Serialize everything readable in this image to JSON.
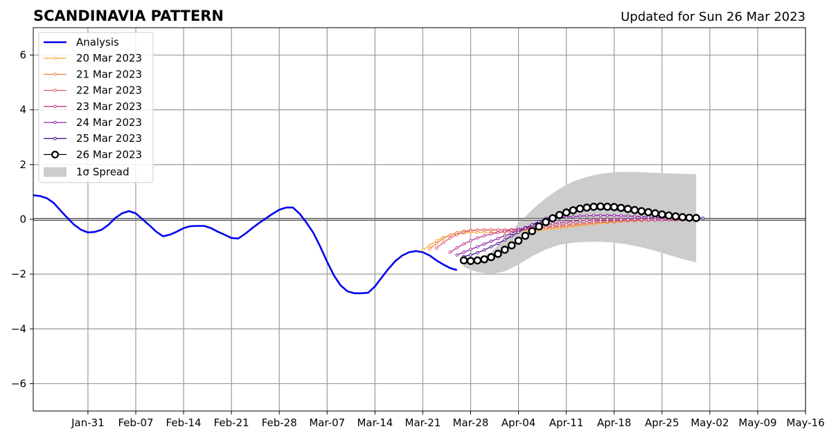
{
  "chart_data": {
    "type": "line",
    "title": "SCANDINAVIA PATTERN",
    "subtitle": "Updated for Sun 26 Mar 2023",
    "xlabel": "",
    "ylabel": "",
    "x_range": [
      "2023-01-23",
      "2023-05-16"
    ],
    "ylim": [
      -7,
      7
    ],
    "yticks": [
      -6,
      -4,
      -2,
      0,
      2,
      4,
      6
    ],
    "ytick_labels": [
      "−6",
      "−4",
      "−2",
      "0",
      "2",
      "4",
      "6"
    ],
    "xticks": [
      "2023-01-31",
      "2023-02-07",
      "2023-02-14",
      "2023-02-21",
      "2023-02-28",
      "2023-03-07",
      "2023-03-14",
      "2023-03-21",
      "2023-03-28",
      "2023-04-04",
      "2023-04-11",
      "2023-04-18",
      "2023-04-25",
      "2023-05-02",
      "2023-05-09",
      "2023-05-16"
    ],
    "xtick_labels": [
      "Jan-31",
      "Feb-07",
      "Feb-14",
      "Feb-21",
      "Feb-28",
      "Mar-07",
      "Mar-14",
      "Mar-21",
      "Mar-28",
      "Apr-04",
      "Apr-11",
      "Apr-18",
      "Apr-25",
      "May-02",
      "May-09",
      "May-16"
    ],
    "grid": true,
    "legend_position": "upper-left",
    "analysis": {
      "name": "Analysis",
      "color": "#0000ee",
      "x": [
        "2023-01-23",
        "2023-01-24",
        "2023-01-25",
        "2023-01-26",
        "2023-01-27",
        "2023-01-28",
        "2023-01-29",
        "2023-01-30",
        "2023-01-31",
        "2023-02-01",
        "2023-02-02",
        "2023-02-03",
        "2023-02-04",
        "2023-02-05",
        "2023-02-06",
        "2023-02-07",
        "2023-02-08",
        "2023-02-09",
        "2023-02-10",
        "2023-02-11",
        "2023-02-12",
        "2023-02-13",
        "2023-02-14",
        "2023-02-15",
        "2023-02-16",
        "2023-02-17",
        "2023-02-18",
        "2023-02-19",
        "2023-02-20",
        "2023-02-21",
        "2023-02-22",
        "2023-02-23",
        "2023-02-24",
        "2023-02-25",
        "2023-02-26",
        "2023-02-27",
        "2023-02-28",
        "2023-03-01",
        "2023-03-02",
        "2023-03-03",
        "2023-03-04",
        "2023-03-05",
        "2023-03-06",
        "2023-03-07",
        "2023-03-08",
        "2023-03-09",
        "2023-03-10",
        "2023-03-11",
        "2023-03-12",
        "2023-03-13",
        "2023-03-14",
        "2023-03-15",
        "2023-03-16",
        "2023-03-17",
        "2023-03-18",
        "2023-03-19",
        "2023-03-20",
        "2023-03-21",
        "2023-03-22",
        "2023-03-23",
        "2023-03-24",
        "2023-03-25",
        "2023-03-26"
      ],
      "y": [
        0.88,
        0.85,
        0.77,
        0.6,
        0.32,
        0.05,
        -0.2,
        -0.38,
        -0.48,
        -0.46,
        -0.38,
        -0.2,
        0.05,
        0.22,
        0.3,
        0.22,
        0.0,
        -0.22,
        -0.45,
        -0.62,
        -0.56,
        -0.45,
        -0.32,
        -0.25,
        -0.24,
        -0.24,
        -0.32,
        -0.45,
        -0.56,
        -0.68,
        -0.7,
        -0.53,
        -0.33,
        -0.14,
        0.03,
        0.2,
        0.35,
        0.43,
        0.43,
        0.2,
        -0.13,
        -0.5,
        -1.0,
        -1.55,
        -2.05,
        -2.42,
        -2.63,
        -2.7,
        -2.7,
        -2.68,
        -2.45,
        -2.12,
        -1.8,
        -1.52,
        -1.32,
        -1.2,
        -1.16,
        -1.2,
        -1.32,
        -1.5,
        -1.65,
        -1.78,
        -1.85
      ]
    },
    "forecasts": [
      {
        "name": "20 Mar 2023",
        "color": "#f5b040",
        "x": [
          "2023-03-21",
          "2023-03-22",
          "2023-03-23",
          "2023-03-24",
          "2023-03-25",
          "2023-03-26",
          "2023-03-27",
          "2023-03-28",
          "2023-03-29",
          "2023-03-30",
          "2023-03-31",
          "2023-04-01",
          "2023-04-02",
          "2023-04-03",
          "2023-04-04",
          "2023-04-05",
          "2023-04-06",
          "2023-04-07",
          "2023-04-08",
          "2023-04-09",
          "2023-04-10",
          "2023-04-11",
          "2023-04-12",
          "2023-04-13",
          "2023-04-14",
          "2023-04-15",
          "2023-04-16",
          "2023-04-17",
          "2023-04-18",
          "2023-04-19",
          "2023-04-20",
          "2023-04-21",
          "2023-04-22",
          "2023-04-23",
          "2023-04-24",
          "2023-04-25",
          "2023-04-26"
        ],
        "y": [
          -1.12,
          -0.95,
          -0.78,
          -0.66,
          -0.58,
          -0.53,
          -0.5,
          -0.48,
          -0.47,
          -0.47,
          -0.47,
          -0.47,
          -0.47,
          -0.46,
          -0.45,
          -0.44,
          -0.42,
          -0.4,
          -0.37,
          -0.34,
          -0.31,
          -0.28,
          -0.25,
          -0.22,
          -0.19,
          -0.16,
          -0.14,
          -0.12,
          -0.1,
          -0.08,
          -0.06,
          -0.05,
          -0.04,
          -0.03,
          -0.02,
          -0.02,
          -0.02
        ]
      },
      {
        "name": "21 Mar 2023",
        "color": "#ed8246",
        "x": [
          "2023-03-22",
          "2023-03-23",
          "2023-03-24",
          "2023-03-25",
          "2023-03-26",
          "2023-03-27",
          "2023-03-28",
          "2023-03-29",
          "2023-03-30",
          "2023-03-31",
          "2023-04-01",
          "2023-04-02",
          "2023-04-03",
          "2023-04-04",
          "2023-04-05",
          "2023-04-06",
          "2023-04-07",
          "2023-04-08",
          "2023-04-09",
          "2023-04-10",
          "2023-04-11",
          "2023-04-12",
          "2023-04-13",
          "2023-04-14",
          "2023-04-15",
          "2023-04-16",
          "2023-04-17",
          "2023-04-18",
          "2023-04-19",
          "2023-04-20",
          "2023-04-21",
          "2023-04-22",
          "2023-04-23",
          "2023-04-24",
          "2023-04-25",
          "2023-04-26",
          "2023-04-27"
        ],
        "y": [
          -1.08,
          -0.88,
          -0.7,
          -0.57,
          -0.48,
          -0.43,
          -0.4,
          -0.39,
          -0.39,
          -0.39,
          -0.39,
          -0.39,
          -0.39,
          -0.38,
          -0.37,
          -0.36,
          -0.34,
          -0.32,
          -0.3,
          -0.27,
          -0.25,
          -0.22,
          -0.19,
          -0.17,
          -0.14,
          -0.12,
          -0.1,
          -0.09,
          -0.07,
          -0.06,
          -0.05,
          -0.04,
          -0.03,
          -0.03,
          -0.02,
          -0.02,
          -0.02
        ]
      },
      {
        "name": "22 Mar 2023",
        "color": "#df5c6e",
        "x": [
          "2023-03-23",
          "2023-03-24",
          "2023-03-25",
          "2023-03-26",
          "2023-03-27",
          "2023-03-28",
          "2023-03-29",
          "2023-03-30",
          "2023-03-31",
          "2023-04-01",
          "2023-04-02",
          "2023-04-03",
          "2023-04-04",
          "2023-04-05",
          "2023-04-06",
          "2023-04-07",
          "2023-04-08",
          "2023-04-09",
          "2023-04-10",
          "2023-04-11",
          "2023-04-12",
          "2023-04-13",
          "2023-04-14",
          "2023-04-15",
          "2023-04-16",
          "2023-04-17",
          "2023-04-18",
          "2023-04-19",
          "2023-04-20",
          "2023-04-21",
          "2023-04-22",
          "2023-04-23",
          "2023-04-24",
          "2023-04-25",
          "2023-04-26",
          "2023-04-27",
          "2023-04-28"
        ],
        "y": [
          -1.05,
          -0.85,
          -0.68,
          -0.56,
          -0.47,
          -0.42,
          -0.39,
          -0.38,
          -0.38,
          -0.38,
          -0.38,
          -0.37,
          -0.36,
          -0.34,
          -0.32,
          -0.3,
          -0.27,
          -0.25,
          -0.22,
          -0.19,
          -0.17,
          -0.14,
          -0.12,
          -0.1,
          -0.08,
          -0.07,
          -0.06,
          -0.05,
          -0.04,
          -0.03,
          -0.03,
          -0.02,
          -0.02,
          -0.02,
          -0.02,
          -0.02,
          -0.02
        ]
      },
      {
        "name": "23 Mar 2023",
        "color": "#c0358e",
        "x": [
          "2023-03-25",
          "2023-03-26",
          "2023-03-27",
          "2023-03-28",
          "2023-03-29",
          "2023-03-30",
          "2023-03-31",
          "2023-04-01",
          "2023-04-02",
          "2023-04-03",
          "2023-04-04",
          "2023-04-05",
          "2023-04-06",
          "2023-04-07",
          "2023-04-08",
          "2023-04-09",
          "2023-04-10",
          "2023-04-11",
          "2023-04-12",
          "2023-04-13",
          "2023-04-14",
          "2023-04-15",
          "2023-04-16",
          "2023-04-17",
          "2023-04-18",
          "2023-04-19",
          "2023-04-20",
          "2023-04-21",
          "2023-04-22",
          "2023-04-23",
          "2023-04-24",
          "2023-04-25",
          "2023-04-26",
          "2023-04-27",
          "2023-04-28",
          "2023-04-29"
        ],
        "y": [
          -1.2,
          -1.04,
          -0.9,
          -0.78,
          -0.68,
          -0.6,
          -0.53,
          -0.48,
          -0.44,
          -0.4,
          -0.36,
          -0.32,
          -0.28,
          -0.24,
          -0.2,
          -0.16,
          -0.13,
          -0.1,
          -0.07,
          -0.05,
          -0.03,
          -0.02,
          -0.01,
          0.0,
          0.0,
          0.0,
          0.0,
          0.0,
          -0.01,
          -0.01,
          -0.02,
          -0.02,
          -0.02,
          -0.02,
          -0.02,
          -0.02
        ]
      },
      {
        "name": "24 Mar 2023",
        "color": "#8e1ea5",
        "x": [
          "2023-03-26",
          "2023-03-27",
          "2023-03-28",
          "2023-03-29",
          "2023-03-30",
          "2023-03-31",
          "2023-04-01",
          "2023-04-02",
          "2023-04-03",
          "2023-04-04",
          "2023-04-05",
          "2023-04-06",
          "2023-04-07",
          "2023-04-08",
          "2023-04-09",
          "2023-04-10",
          "2023-04-11",
          "2023-04-12",
          "2023-04-13",
          "2023-04-14",
          "2023-04-15",
          "2023-04-16",
          "2023-04-17",
          "2023-04-18",
          "2023-04-19",
          "2023-04-20",
          "2023-04-21",
          "2023-04-22",
          "2023-04-23",
          "2023-04-24",
          "2023-04-25",
          "2023-04-26",
          "2023-04-27",
          "2023-04-28",
          "2023-04-29",
          "2023-04-30"
        ],
        "y": [
          -1.3,
          -1.2,
          -1.1,
          -1.0,
          -0.9,
          -0.8,
          -0.7,
          -0.6,
          -0.5,
          -0.4,
          -0.3,
          -0.21,
          -0.13,
          -0.06,
          0.0,
          0.05,
          0.08,
          0.1,
          0.12,
          0.13,
          0.14,
          0.14,
          0.14,
          0.14,
          0.13,
          0.12,
          0.11,
          0.1,
          0.08,
          0.07,
          0.06,
          0.05,
          0.04,
          0.03,
          0.02,
          0.02
        ]
      },
      {
        "name": "25 Mar 2023",
        "color": "#4a0f8a",
        "x": [
          "2023-03-27",
          "2023-03-28",
          "2023-03-29",
          "2023-03-30",
          "2023-03-31",
          "2023-04-01",
          "2023-04-02",
          "2023-04-03",
          "2023-04-04",
          "2023-04-05",
          "2023-04-06",
          "2023-04-07",
          "2023-04-08",
          "2023-04-09",
          "2023-04-10",
          "2023-04-11",
          "2023-04-12",
          "2023-04-13",
          "2023-04-14",
          "2023-04-15",
          "2023-04-16",
          "2023-04-17",
          "2023-04-18",
          "2023-04-19",
          "2023-04-20",
          "2023-04-21",
          "2023-04-22",
          "2023-04-23",
          "2023-04-24",
          "2023-04-25",
          "2023-04-26",
          "2023-04-27",
          "2023-04-28",
          "2023-04-29",
          "2023-04-30",
          "2023-05-01"
        ],
        "y": [
          -1.36,
          -1.3,
          -1.22,
          -1.12,
          -1.0,
          -0.88,
          -0.75,
          -0.61,
          -0.47,
          -0.33,
          -0.2,
          -0.08,
          0.03,
          0.13,
          0.21,
          0.27,
          0.32,
          0.35,
          0.37,
          0.38,
          0.38,
          0.37,
          0.35,
          0.33,
          0.3,
          0.27,
          0.24,
          0.21,
          0.18,
          0.15,
          0.12,
          0.1,
          0.08,
          0.06,
          0.05,
          0.04
        ]
      },
      {
        "name": "26 Mar 2023",
        "color": "#000000",
        "x": [
          "2023-03-27",
          "2023-03-28",
          "2023-03-29",
          "2023-03-30",
          "2023-03-31",
          "2023-04-01",
          "2023-04-02",
          "2023-04-03",
          "2023-04-04",
          "2023-04-05",
          "2023-04-06",
          "2023-04-07",
          "2023-04-08",
          "2023-04-09",
          "2023-04-10",
          "2023-04-11",
          "2023-04-12",
          "2023-04-13",
          "2023-04-14",
          "2023-04-15",
          "2023-04-16",
          "2023-04-17",
          "2023-04-18",
          "2023-04-19",
          "2023-04-20",
          "2023-04-21",
          "2023-04-22",
          "2023-04-23",
          "2023-04-24",
          "2023-04-25",
          "2023-04-26",
          "2023-04-27",
          "2023-04-28",
          "2023-04-29",
          "2023-04-30"
        ],
        "y": [
          -1.5,
          -1.52,
          -1.5,
          -1.46,
          -1.38,
          -1.26,
          -1.11,
          -0.95,
          -0.78,
          -0.6,
          -0.43,
          -0.26,
          -0.1,
          0.04,
          0.16,
          0.25,
          0.33,
          0.39,
          0.43,
          0.46,
          0.47,
          0.46,
          0.45,
          0.42,
          0.38,
          0.34,
          0.3,
          0.26,
          0.22,
          0.18,
          0.14,
          0.11,
          0.08,
          0.06,
          0.05
        ]
      }
    ],
    "spread": {
      "name": "1σ Spread",
      "color": "#cccccc",
      "x": [
        "2023-03-27",
        "2023-03-29",
        "2023-03-31",
        "2023-04-02",
        "2023-04-04",
        "2023-04-06",
        "2023-04-08",
        "2023-04-10",
        "2023-04-12",
        "2023-04-14",
        "2023-04-16",
        "2023-04-18",
        "2023-04-20",
        "2023-04-22",
        "2023-04-24",
        "2023-04-26",
        "2023-04-28",
        "2023-04-30"
      ],
      "upper": [
        -1.55,
        -1.45,
        -1.2,
        -0.7,
        -0.15,
        0.35,
        0.78,
        1.12,
        1.38,
        1.55,
        1.66,
        1.72,
        1.73,
        1.72,
        1.7,
        1.68,
        1.66,
        1.65
      ],
      "lower": [
        -1.75,
        -1.93,
        -2.0,
        -1.9,
        -1.65,
        -1.35,
        -1.1,
        -0.93,
        -0.85,
        -0.82,
        -0.82,
        -0.85,
        -0.92,
        -1.02,
        -1.15,
        -1.3,
        -1.45,
        -1.57
      ]
    }
  }
}
